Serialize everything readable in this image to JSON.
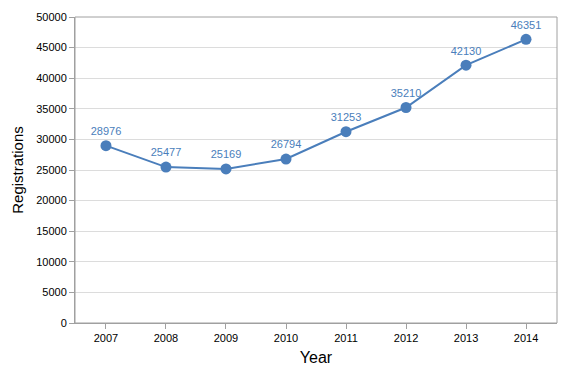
{
  "chart_data": {
    "type": "line",
    "x_label": "Year",
    "y_label": "Registrations",
    "categories": [
      "2007",
      "2008",
      "2009",
      "2010",
      "2011",
      "2012",
      "2013",
      "2014"
    ],
    "values": [
      28976,
      25477,
      25169,
      26794,
      31253,
      35210,
      42130,
      46351
    ],
    "color": "#4a7ebb",
    "marker": "circle",
    "line_style": "solid",
    "data_labels": true,
    "grid": true,
    "ylim": [
      0,
      50000
    ],
    "yticks": [
      0,
      5000,
      10000,
      15000,
      20000,
      25000,
      30000,
      35000,
      40000,
      45000,
      50000
    ]
  }
}
